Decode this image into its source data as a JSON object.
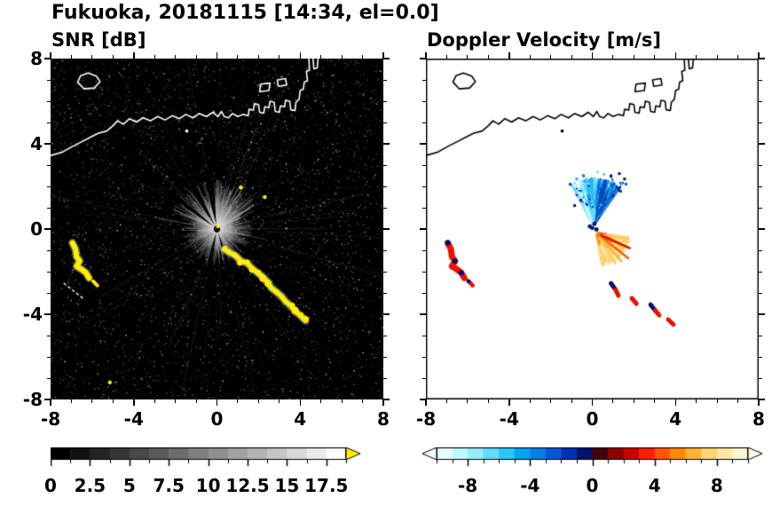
{
  "figure": {
    "title": "Fukuoka, 20181115 [14:34, el=0.0]"
  },
  "chart_data": [
    {
      "id": "snr",
      "type": "heatmap",
      "title": "SNR [dB]",
      "xlim": [
        -8,
        8
      ],
      "ylim": [
        -8,
        8
      ],
      "xticks": [
        -8,
        -4,
        0,
        4,
        8
      ],
      "yticks": [
        8,
        4,
        0,
        -4,
        -8
      ],
      "minor_tick_step": 1,
      "background_color": "#000000",
      "colorbar": {
        "min": 0,
        "max": 18.75,
        "step": 1.25,
        "tick_values": [
          0,
          2.5,
          5,
          7.5,
          10,
          12.5,
          15,
          17.5
        ],
        "tick_labels": [
          "0",
          "2.5",
          "5",
          "7.5",
          "10",
          "12.5",
          "15",
          "17.5"
        ],
        "colormap": "grayscale-black-to-white",
        "over_arrow_color": "#ffec00"
      },
      "features": {
        "noise_seed": 7,
        "speckle_count": 5200,
        "echo_color": "#ffef00",
        "fringe_color": "rgba(175,175,175,0.55)",
        "dark_wedges": [
          [
            94,
            104
          ],
          [
            116,
            124
          ],
          [
            139,
            146
          ],
          [
            253,
            262
          ],
          [
            284,
            291
          ]
        ],
        "streaks": [
          [
            58,
            2.6,
            0.3
          ],
          [
            170,
            2.9,
            0.25
          ],
          [
            348,
            2.4,
            0.22
          ],
          [
            300,
            2.2,
            0.2
          ],
          [
            135,
            5.5,
            0.1
          ],
          [
            210,
            6.5,
            0.08
          ],
          [
            8,
            7.5,
            0.07
          ],
          [
            250,
            4.5,
            0.09
          ]
        ],
        "arc": [
          [
            0.35,
            -0.95
          ],
          [
            0.6,
            -1.1
          ],
          [
            0.9,
            -1.25
          ],
          [
            1.15,
            -1.5
          ],
          [
            1.45,
            -1.6
          ],
          [
            1.7,
            -1.85
          ],
          [
            1.95,
            -2.05
          ],
          [
            2.2,
            -2.25
          ],
          [
            2.45,
            -2.5
          ],
          [
            2.6,
            -2.75
          ],
          [
            2.85,
            -2.95
          ],
          [
            3.1,
            -3.15
          ],
          [
            3.3,
            -3.4
          ],
          [
            3.55,
            -3.6
          ],
          [
            3.75,
            -3.85
          ],
          [
            4.0,
            -4.05
          ],
          [
            4.25,
            -4.3
          ]
        ],
        "left_cluster": [
          [
            -6.95,
            -0.65
          ],
          [
            -6.8,
            -0.95
          ],
          [
            -6.75,
            -1.3
          ],
          [
            -6.6,
            -1.5
          ],
          [
            -6.75,
            -1.75
          ],
          [
            -6.5,
            -1.9
          ],
          [
            -6.3,
            -2.05
          ],
          [
            -6.15,
            -2.3
          ]
        ],
        "left_cluster_tail": [
          [
            -5.95,
            -2.45
          ],
          [
            -5.75,
            -2.65
          ]
        ],
        "dots": [
          [
            1.15,
            1.95
          ],
          [
            2.3,
            1.5
          ],
          [
            -5.15,
            -7.2
          ],
          [
            0.05,
            0.12
          ]
        ],
        "dashed_line": [
          [
            -7.35,
            -2.55
          ],
          [
            -6.45,
            -3.25
          ]
        ]
      }
    },
    {
      "id": "velocity",
      "type": "heatmap",
      "title": "Doppler Velocity [m/s]",
      "xlim": [
        -8,
        8
      ],
      "ylim": [
        -8,
        8
      ],
      "xticks": [
        -8,
        -4,
        0,
        4,
        8
      ],
      "yticks": [
        8,
        4,
        0,
        -4,
        -8
      ],
      "minor_tick_step": 1,
      "background_color": "#ffffff",
      "colorbar": {
        "min": -10,
        "max": 10,
        "step": 1,
        "tick_values": [
          -8,
          -4,
          0,
          4,
          8
        ],
        "tick_labels": [
          "-8",
          "-4",
          "0",
          "4",
          "8"
        ],
        "colormap": "cyan-blue-navy-red-orange-yellow",
        "palette": [
          "#e8ffff",
          "#c0f8ff",
          "#94ecff",
          "#60dcff",
          "#2cc4fc",
          "#00a4f4",
          "#0080e8",
          "#0058d8",
          "#0030b8",
          "#001270",
          "#47000a",
          "#8c0000",
          "#c80000",
          "#f42000",
          "#ff5800",
          "#ff8c00",
          "#ffb438",
          "#ffd470",
          "#ffe7a4",
          "#fff5d2"
        ],
        "under_arrow_color": "#f2ffff",
        "over_arrow_color": "#fffae8"
      },
      "features": {
        "seed": 99,
        "navy": "#001070",
        "cool_fan": {
          "origin": [
            0.05,
            0.15
          ],
          "angle_range": [
            55,
            118
          ],
          "max_radius": 2.3,
          "palette_left": [
            "#c8f6ff",
            "#8ae8ff",
            "#54d6ff"
          ],
          "palette_mid": [
            "#6adcff",
            "#2cb8f4",
            "#0898e4"
          ],
          "palette_right": [
            "#18a0ec",
            "#0070d8",
            "#0046b8"
          ],
          "dot_palette": [
            "#0030a0",
            "#0048c0",
            "#20b0f0"
          ]
        },
        "blue_dots": [
          [
            -0.55,
            1.35
          ],
          [
            -0.85,
            1.1
          ],
          [
            1.55,
            2.35
          ],
          [
            1.3,
            2.6
          ],
          [
            0.9,
            2.5
          ]
        ],
        "warm_fan": {
          "origin": [
            0.2,
            -0.2
          ],
          "angle_range": [
            -80,
            -6
          ],
          "max_radius": 1.6,
          "palette_inner": [
            "#cc0800",
            "#e81400",
            "#ff3000"
          ],
          "palette_mid": [
            "#ff5c00",
            "#ff8400",
            "#ffa41c"
          ],
          "palette_outer": [
            "#ffc34a",
            "#ffd87e",
            "#ffe9ac"
          ],
          "spikes": [
            [
              -38,
              1.95,
              "#ff6000"
            ],
            [
              -48,
              1.8,
              "#ffb040"
            ],
            [
              -24,
              1.75,
              "#e01400"
            ],
            [
              -58,
              1.7,
              "#ffd060"
            ]
          ]
        },
        "center_dots": [
          [
            0.0,
            0.05
          ],
          [
            0.2,
            -0.02
          ],
          [
            -0.12,
            0.12
          ],
          [
            0.1,
            0.24
          ]
        ],
        "center_dot_color": "#001668",
        "left_cluster_color": "#e81400",
        "left_cluster_navy_indices": [
          0,
          3,
          6
        ],
        "arc_segments": [
          {
            "pts": [
              [
                0.9,
                -2.55
              ],
              [
                1.12,
                -2.85
              ],
              [
                1.25,
                -3.12
              ]
            ],
            "colors": [
              "#001070",
              "#e01400"
            ]
          },
          {
            "pts": [
              [
                1.9,
                -3.25
              ],
              [
                2.12,
                -3.5
              ]
            ],
            "colors": [
              "#e01400",
              "#001070"
            ]
          },
          {
            "pts": [
              [
                2.8,
                -3.55
              ],
              [
                3.02,
                -3.82
              ],
              [
                3.22,
                -4.05
              ]
            ],
            "colors": [
              "#001070",
              "#e01400"
            ]
          },
          {
            "pts": [
              [
                3.65,
                -4.25
              ],
              [
                3.9,
                -4.48
              ]
            ],
            "colors": [
              "#e01400",
              "#001070"
            ]
          }
        ]
      }
    }
  ],
  "coastline": {
    "color_on_snr": "#ffffff",
    "color_on_velocity": "#000000",
    "main": [
      [
        -8,
        3.45
      ],
      [
        -7.45,
        3.6
      ],
      [
        -7.0,
        3.85
      ],
      [
        -6.5,
        4.1
      ],
      [
        -6.1,
        4.3
      ],
      [
        -5.7,
        4.5
      ],
      [
        -5.3,
        4.6
      ],
      [
        -5.0,
        4.85
      ],
      [
        -4.78,
        5.08
      ],
      [
        -4.5,
        4.92
      ],
      [
        -4.2,
        5.18
      ],
      [
        -3.88,
        5.02
      ],
      [
        -3.55,
        5.22
      ],
      [
        -3.2,
        5.08
      ],
      [
        -2.85,
        5.28
      ],
      [
        -2.5,
        5.12
      ],
      [
        -2.15,
        5.32
      ],
      [
        -1.8,
        5.18
      ],
      [
        -1.5,
        5.38
      ],
      [
        -1.15,
        5.22
      ],
      [
        -0.85,
        5.42
      ],
      [
        -0.5,
        5.28
      ],
      [
        -0.2,
        5.48
      ],
      [
        0.05,
        5.28
      ],
      [
        0.22,
        5.52
      ],
      [
        0.35,
        5.28
      ],
      [
        0.55,
        5.22
      ],
      [
        0.75,
        5.42
      ],
      [
        1.0,
        5.28
      ],
      [
        1.25,
        5.38
      ],
      [
        1.5,
        5.32
      ],
      [
        1.55,
        5.62
      ],
      [
        1.75,
        5.58
      ],
      [
        1.8,
        5.88
      ],
      [
        2.0,
        5.84
      ],
      [
        2.05,
        5.48
      ],
      [
        2.25,
        5.44
      ],
      [
        2.3,
        5.74
      ],
      [
        2.5,
        5.7
      ],
      [
        2.55,
        6.0
      ],
      [
        2.75,
        5.95
      ],
      [
        2.8,
        5.52
      ],
      [
        3.0,
        5.48
      ],
      [
        3.05,
        5.78
      ],
      [
        3.25,
        5.74
      ],
      [
        3.3,
        6.04
      ],
      [
        3.5,
        6.0
      ],
      [
        3.55,
        5.6
      ],
      [
        3.75,
        5.56
      ],
      [
        3.8,
        5.95
      ],
      [
        3.95,
        6.1
      ],
      [
        4.0,
        6.5
      ],
      [
        4.15,
        6.56
      ],
      [
        4.2,
        6.9
      ],
      [
        4.35,
        6.96
      ],
      [
        4.3,
        7.4
      ],
      [
        4.45,
        7.46
      ],
      [
        4.42,
        8.0
      ]
    ],
    "island": [
      [
        -6.7,
        6.9
      ],
      [
        -6.55,
        7.2
      ],
      [
        -6.2,
        7.32
      ],
      [
        -5.8,
        7.18
      ],
      [
        -5.62,
        6.92
      ],
      [
        -5.9,
        6.62
      ],
      [
        -6.4,
        6.58
      ]
    ],
    "pier_block_a": [
      [
        2.05,
        6.45
      ],
      [
        2.5,
        6.5
      ],
      [
        2.55,
        6.85
      ],
      [
        2.1,
        6.8
      ]
    ],
    "pier_block_b": [
      [
        2.95,
        6.7
      ],
      [
        3.35,
        6.76
      ],
      [
        3.3,
        7.06
      ],
      [
        2.9,
        7.0
      ]
    ],
    "top_hook": [
      [
        4.62,
        8.0
      ],
      [
        4.66,
        7.52
      ],
      [
        4.82,
        7.56
      ],
      [
        4.86,
        8.0
      ]
    ],
    "spot": [
      -1.45,
      4.6
    ]
  }
}
